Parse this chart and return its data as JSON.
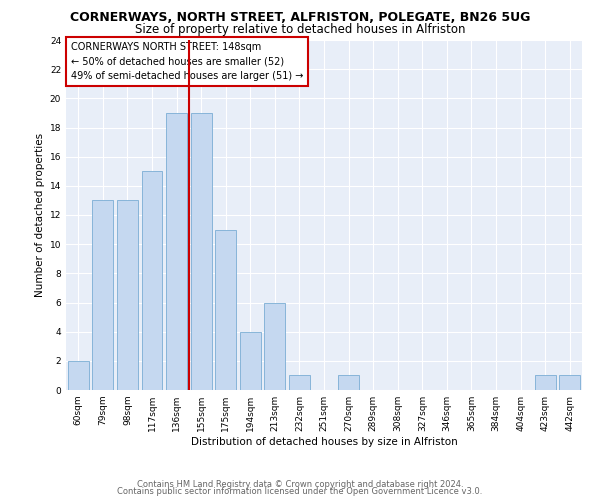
{
  "title": "CORNERWAYS, NORTH STREET, ALFRISTON, POLEGATE, BN26 5UG",
  "subtitle": "Size of property relative to detached houses in Alfriston",
  "xlabel": "Distribution of detached houses by size in Alfriston",
  "ylabel": "Number of detached properties",
  "categories": [
    "60sqm",
    "79sqm",
    "98sqm",
    "117sqm",
    "136sqm",
    "155sqm",
    "175sqm",
    "194sqm",
    "213sqm",
    "232sqm",
    "251sqm",
    "270sqm",
    "289sqm",
    "308sqm",
    "327sqm",
    "346sqm",
    "365sqm",
    "384sqm",
    "404sqm",
    "423sqm",
    "442sqm"
  ],
  "values": [
    2,
    13,
    13,
    15,
    19,
    19,
    11,
    4,
    6,
    1,
    0,
    1,
    0,
    0,
    0,
    0,
    0,
    0,
    0,
    1,
    1
  ],
  "bar_color": "#c5d8f0",
  "bar_edge_color": "#7aadd4",
  "vline_color": "#cc0000",
  "vline_index": 4,
  "annotation_line1": "CORNERWAYS NORTH STREET: 148sqm",
  "annotation_line2": "← 50% of detached houses are smaller (52)",
  "annotation_line3": "49% of semi-detached houses are larger (51) →",
  "annotation_box_edge": "#cc0000",
  "ylim": [
    0,
    24
  ],
  "yticks": [
    0,
    2,
    4,
    6,
    8,
    10,
    12,
    14,
    16,
    18,
    20,
    22,
    24
  ],
  "footer_line1": "Contains HM Land Registry data © Crown copyright and database right 2024.",
  "footer_line2": "Contains public sector information licensed under the Open Government Licence v3.0.",
  "bg_color": "#ffffff",
  "plot_bg_color": "#e8eef8",
  "grid_color": "#ffffff",
  "title_fontsize": 9,
  "subtitle_fontsize": 8.5,
  "axis_label_fontsize": 7.5,
  "tick_fontsize": 6.5,
  "annotation_fontsize": 7,
  "footer_fontsize": 6
}
